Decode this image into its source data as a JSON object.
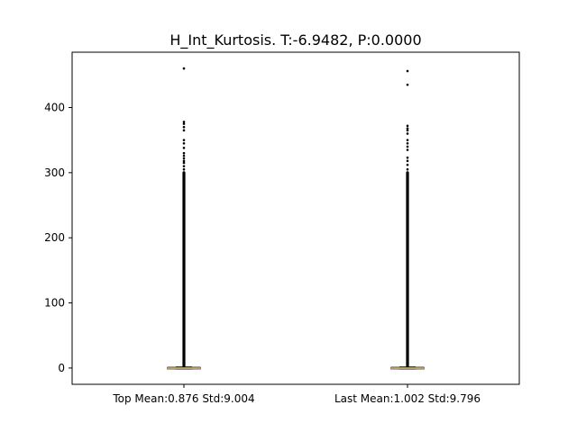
{
  "chart_data": {
    "type": "box",
    "title": "H_Int_Kurtosis. T:-6.9482, P:0.0000",
    "xlabel": "",
    "ylabel": "",
    "categories": [
      "Top Mean:0.876 Std:9.004",
      "Last Mean:1.002 Std:9.796"
    ],
    "ylim": [
      -25,
      485
    ],
    "yticks": [
      0,
      100,
      200,
      300,
      400
    ],
    "grid": false,
    "legend": "none",
    "series": [
      {
        "box": {
          "q1": -0.8,
          "median": -0.4,
          "q3": 0.4,
          "whisker_low": -1.6,
          "whisker_high": 1.6
        },
        "dense_outliers": {
          "from": 2,
          "to": 300
        },
        "outliers": [
          305,
          310,
          315,
          318,
          322,
          326,
          330,
          338,
          345,
          350,
          365,
          370,
          375,
          378,
          460
        ]
      },
      {
        "box": {
          "q1": -0.8,
          "median": -0.4,
          "q3": 0.4,
          "whisker_low": -1.6,
          "whisker_high": 1.6
        },
        "dense_outliers": {
          "from": 2,
          "to": 300
        },
        "outliers": [
          305,
          312,
          318,
          323,
          335,
          340,
          345,
          350,
          360,
          365,
          368,
          372,
          435,
          456
        ]
      }
    ],
    "colors": {
      "box": "#000000",
      "median": "#b8a36a",
      "flier": "#000000"
    }
  }
}
